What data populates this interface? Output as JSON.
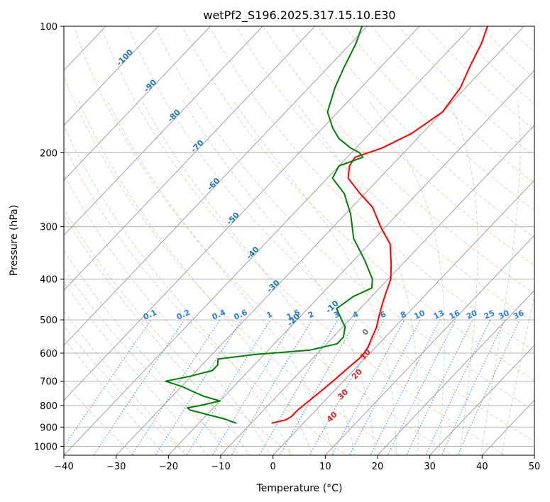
{
  "chart_data": {
    "type": "line",
    "title": "wetPf2_S196.2025.317.15.10.E30",
    "xlabel": "Temperature (°C)",
    "ylabel": "Pressure (hPa)",
    "xlim": [
      -40,
      50
    ],
    "ylim": [
      1050,
      100
    ],
    "y_scale": "log",
    "grid": true,
    "x_ticks": [
      -40,
      -30,
      -20,
      -10,
      0,
      10,
      20,
      30,
      40,
      50
    ],
    "x_tick_labels": [
      "−40",
      "−30",
      "−20",
      "−10",
      "0",
      "10",
      "20",
      "30",
      "40",
      "50"
    ],
    "y_ticks": [
      100,
      200,
      300,
      400,
      500,
      600,
      700,
      800,
      900,
      1000
    ],
    "y_tick_labels": [
      "100",
      "200",
      "300",
      "400",
      "500",
      "600",
      "700",
      "800",
      "900",
      "1000"
    ],
    "mixing_ratio_labels": [
      "0.1",
      "0.2",
      "0.4",
      "0.6",
      "1",
      "1.5",
      "2",
      "3",
      "4",
      "6",
      "8",
      "10",
      "13",
      "16",
      "20",
      "25",
      "30",
      "36"
    ],
    "mixing_ratio_values": [
      0.1,
      0.2,
      0.4,
      0.6,
      1,
      1.5,
      2,
      3,
      4,
      6,
      8,
      10,
      13,
      16,
      20,
      25,
      30,
      36
    ],
    "isotherm_labels": [
      "-100",
      "-90",
      "-80",
      "-70",
      "-60",
      "-50",
      "-40",
      "-30",
      "-20",
      "-10",
      "0",
      "10",
      "20",
      "30",
      "40"
    ],
    "isotherm_values": [
      -100,
      -90,
      -80,
      -70,
      -60,
      -50,
      -40,
      -30,
      -20,
      -10,
      0,
      10,
      20,
      30,
      40
    ],
    "series": [
      {
        "color": "#ff0000",
        "pressure": [
          880,
          865,
          850,
          820,
          780,
          740,
          700,
          650,
          610,
          580,
          550,
          520,
          490,
          460,
          430,
          400,
          370,
          330,
          300,
          270,
          250,
          230,
          215,
          205,
          195,
          180,
          160,
          140,
          125,
          110,
          100
        ],
        "temperature": [
          -6,
          -4,
          -3.5,
          -3.5,
          -3,
          -2.5,
          -2,
          -1.5,
          -1,
          -1.5,
          -2.5,
          -3.5,
          -5,
          -6.5,
          -8,
          -9.5,
          -12,
          -16,
          -21,
          -26,
          -31,
          -36,
          -38,
          -38.5,
          -35,
          -32,
          -30,
          -31,
          -33,
          -35,
          -37
        ]
      },
      {
        "color": "#008000",
        "pressure": [
          880,
          860,
          840,
          820,
          810,
          800,
          780,
          760,
          740,
          720,
          700,
          680,
          660,
          640,
          620,
          605,
          590,
          570,
          550,
          520,
          500,
          470,
          440,
          420,
          400,
          360,
          320,
          280,
          250,
          230,
          215,
          205,
          200,
          195,
          185,
          175,
          160,
          140,
          125,
          110,
          100
        ],
        "temperature": [
          -13,
          -16,
          -20,
          -24,
          -25,
          -23,
          -20,
          -24,
          -27,
          -30,
          -34,
          -30,
          -27,
          -27,
          -28,
          -22,
          -12,
          -8,
          -8,
          -9.5,
          -11.5,
          -14.5,
          -13.5,
          -11.5,
          -13,
          -18,
          -24,
          -29,
          -34,
          -39,
          -40,
          -37,
          -38.5,
          -41,
          -45,
          -48,
          -52,
          -55,
          -57,
          -59,
          -61
        ]
      }
    ]
  }
}
